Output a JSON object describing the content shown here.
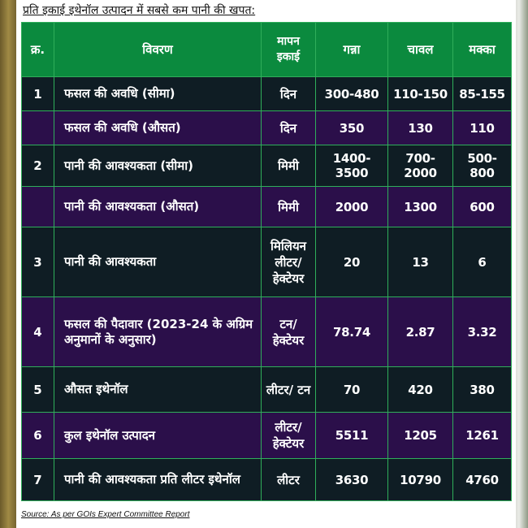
{
  "heading": "प्रति इकाई इथेनॉल उत्पादन में सबसे कम पानी की खपत:",
  "table": {
    "headers": [
      "क्र.",
      "विवरण",
      "मापन इकाई",
      "गन्ना",
      "चावल",
      "मक्का"
    ],
    "rows": [
      {
        "sr": "1",
        "desc": "फसल की अवधि (सीमा)",
        "unit": "दिन",
        "sugarcane": "300-480",
        "rice": "110-150",
        "maize": "85-155"
      },
      {
        "sr": "",
        "desc": "फसल की अवधि (औसत)",
        "unit": "दिन",
        "sugarcane": "350",
        "rice": "130",
        "maize": "110"
      },
      {
        "sr": "2",
        "desc": "पानी की आवश्यकता (सीमा)",
        "unit": "मिमी",
        "sugarcane": "1400-3500",
        "rice": "700-2000",
        "maize": "500-800"
      },
      {
        "sr": "",
        "desc": "पानी की आवश्यकता (औसत)",
        "unit": "मिमी",
        "sugarcane": "2000",
        "rice": "1300",
        "maize": "600"
      },
      {
        "sr": "3",
        "desc": "पानी की आवश्यकता",
        "unit": "मिलियन लीटर/ हेक्टेयर",
        "sugarcane": "20",
        "rice": "13",
        "maize": "6"
      },
      {
        "sr": "4",
        "desc": "फसल की पैदावार (2023-24 के अग्रिम अनुमानों के अनुसार)",
        "unit": "टन/ हेक्टेयर",
        "sugarcane": "78.74",
        "rice": "2.87",
        "maize": "3.32"
      },
      {
        "sr": "5",
        "desc": "औसत इथेनॉल",
        "unit": "लीटर/ टन",
        "sugarcane": "70",
        "rice": "420",
        "maize": "380"
      },
      {
        "sr": "6",
        "desc": "कुल इथेनॉल उत्पादन",
        "unit": "लीटर/ हेक्टेयर",
        "sugarcane": "5511",
        "rice": "1205",
        "maize": "1261"
      },
      {
        "sr": "7",
        "desc": "पानी की आवश्यकता प्रति लीटर इथेनॉल",
        "unit": "लीटर",
        "sugarcane": "3630",
        "rice": "10790",
        "maize": "4760"
      }
    ]
  },
  "source": "Source: As per GOIs Expert Committee Report",
  "colors": {
    "header_bg": "#0b8a3e",
    "row_dark": "#0f1d24",
    "row_purple": "#2b0f4a",
    "border": "#2fae5a"
  }
}
